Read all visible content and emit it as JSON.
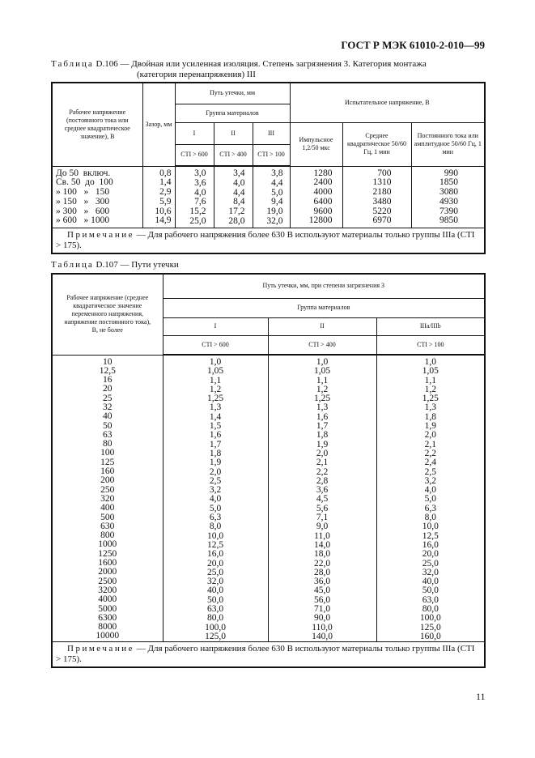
{
  "header": "ГОСТ Р МЭК 61010-2-010—99",
  "page_number": "11",
  "table1": {
    "caption_label": "Таблица",
    "caption_text": " D.106 — Двойная или усиленная изоляция. Степень загрязнения 3. Категория монтажа",
    "caption_line2": "(категория перенапряжения) III",
    "h_voltage": "Рабочее напряжение (постоянного тока или среднее квадратическое значение), В",
    "h_gap": "Зазор, мм",
    "h_creepage": "Путь утечки, мм",
    "h_group": "Группа материалов",
    "h_groups": [
      "I",
      "II",
      "III"
    ],
    "h_cti": [
      "CTI > 600",
      "CTI > 400",
      "CTI > 100"
    ],
    "h_test": "Испытательное напряжение, В",
    "h_tests": [
      "Импульсное 1,2/50 мкс",
      "Среднее квадратическое 50/60 Гц, 1 мин",
      "Постоянного тока или амплитудное 50/60 Гц, 1 мин"
    ],
    "rows": [
      [
        "До 50  включ.",
        "0,8",
        "3,0",
        "3,4",
        "3,8",
        "1280",
        "700",
        "990"
      ],
      [
        "Св. 50  до  100",
        "1,4",
        "3,6",
        "4,0",
        "4,4",
        "2400",
        "1310",
        "1850"
      ],
      [
        "» 100   »   150",
        "2,9",
        "4,0",
        "4,4",
        "5,0",
        "4000",
        "2180",
        "3080"
      ],
      [
        "» 150   »   300",
        "5,9",
        "7,6",
        "8,4",
        "9,4",
        "6400",
        "3480",
        "4930"
      ],
      [
        "» 300   »   600",
        "10,6",
        "15,2",
        "17,2",
        "19,0",
        "9600",
        "5220",
        "7390"
      ],
      [
        "» 600   » 1000",
        "14,9",
        "25,0",
        "28,0",
        "32,0",
        "12800",
        "6970",
        "9850"
      ]
    ],
    "note_label": "Примечание",
    "note_text": " — Для рабочего напряжения более 630 В используют материалы только группы IIIa (CTI > 175)."
  },
  "table2": {
    "caption_label": "Таблица",
    "caption_text": " D.107 — Пути утечки",
    "h_voltage": "Рабочее напряжение (среднее квадратическое значение переменного напряжения, напряжение постоянного тока), В, не более",
    "h_creepage": "Путь утечки, мм, при степени загрязнения 3",
    "h_group": "Группа материалов",
    "h_groups": [
      "I",
      "II",
      "IIIa/IIIb"
    ],
    "h_cti": [
      "CTI > 600",
      "CTI > 400",
      "CTI > 100"
    ],
    "rows": [
      [
        "10",
        "1,0",
        "1,0",
        "1,0"
      ],
      [
        "12,5",
        "1,05",
        "1,05",
        "1,05"
      ],
      [
        "16",
        "1,1",
        "1,1",
        "1,1"
      ],
      [
        "20",
        "1,2",
        "1,2",
        "1,2"
      ],
      [
        "25",
        "1,25",
        "1,25",
        "1,25"
      ],
      [
        "32",
        "1,3",
        "1,3",
        "1,3"
      ],
      [
        "40",
        "1,4",
        "1,6",
        "1,8"
      ],
      [
        "50",
        "1,5",
        "1,7",
        "1,9"
      ],
      [
        "63",
        "1,6",
        "1,8",
        "2,0"
      ],
      [
        "80",
        "1,7",
        "1,9",
        "2,1"
      ],
      [
        "100",
        "1,8",
        "2,0",
        "2,2"
      ],
      [
        "125",
        "1,9",
        "2,1",
        "2,4"
      ],
      [
        "160",
        "2,0",
        "2,2",
        "2,5"
      ],
      [
        "200",
        "2,5",
        "2,8",
        "3,2"
      ],
      [
        "250",
        "3,2",
        "3,6",
        "4,0"
      ],
      [
        "320",
        "4,0",
        "4,5",
        "5,0"
      ],
      [
        "400",
        "5,0",
        "5,6",
        "6,3"
      ],
      [
        "500",
        "6,3",
        "7,1",
        "8,0"
      ],
      [
        "630",
        "8,0",
        "9,0",
        "10,0"
      ],
      [
        "800",
        "10,0",
        "11,0",
        "12,5"
      ],
      [
        "1000",
        "12,5",
        "14,0",
        "16,0"
      ],
      [
        "1250",
        "16,0",
        "18,0",
        "20,0"
      ],
      [
        "1600",
        "20,0",
        "22,0",
        "25,0"
      ],
      [
        "2000",
        "25,0",
        "28,0",
        "32,0"
      ],
      [
        "2500",
        "32,0",
        "36,0",
        "40,0"
      ],
      [
        "3200",
        "40,0",
        "45,0",
        "50,0"
      ],
      [
        "4000",
        "50,0",
        "56,0",
        "63,0"
      ],
      [
        "5000",
        "63,0",
        "71,0",
        "80,0"
      ],
      [
        "6300",
        "80,0",
        "90,0",
        "100,0"
      ],
      [
        "8000",
        "100,0",
        "110,0",
        "125,0"
      ],
      [
        "10000",
        "125,0",
        "140,0",
        "160,0"
      ]
    ],
    "note_label": "Примечание",
    "note_text": " — Для рабочего напряжения более 630 В используют материалы только группы IIIa (CTI > 175)."
  }
}
